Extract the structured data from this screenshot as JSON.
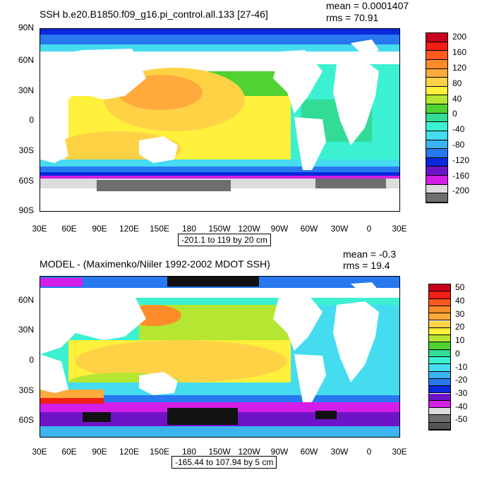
{
  "panels": [
    {
      "title": "SSH b.e20.B1850.f09_g16.pi_control.all.133 [27-46]",
      "mean": "mean = 0.0001407",
      "rms": "rms = 70.91",
      "range_note": "-201.1 to 119 by 20 cm",
      "lat_labels": [
        "90N",
        "60N",
        "30N",
        "0",
        "30S",
        "60S",
        "90S"
      ],
      "lon_labels": [
        "30E",
        "60E",
        "90E",
        "120E",
        "150E",
        "180",
        "150W",
        "120W",
        "90W",
        "60W",
        "30W",
        "0",
        "30E"
      ],
      "colorbar_labels": [
        "200",
        "160",
        "120",
        "80",
        "40",
        "0",
        "-40",
        "-80",
        "-120",
        "-160",
        "-200"
      ],
      "colorbar_colors": [
        "#c8001e",
        "#f01e14",
        "#ff5a1e",
        "#ff8c28",
        "#ffaa3c",
        "#ffd246",
        "#fff03c",
        "#b4e632",
        "#50d232",
        "#32dc96",
        "#3cf0d2",
        "#46dcf0",
        "#3cb4f0",
        "#2878f0",
        "#0a28dc",
        "#6e14c8",
        "#d21ee6",
        "#dcdcdc",
        "#6e6e6e"
      ]
    },
    {
      "title": "MODEL - (Maximenko/Niiler 1992-2002 MDOT SSH)",
      "mean": "mean = -0.3",
      "rms": "rms = 19.4",
      "range_note": "-165.44 to 107.94 by 5 cm",
      "lat_labels": [
        "60N",
        "30N",
        "0",
        "30S",
        "60S"
      ],
      "lon_labels": [
        "30E",
        "60E",
        "90E",
        "120E",
        "150E",
        "180",
        "150W",
        "120W",
        "90W",
        "60W",
        "30W",
        "0",
        "30E"
      ],
      "colorbar_labels": [
        "50",
        "40",
        "30",
        "20",
        "10",
        "0",
        "-10",
        "-20",
        "-30",
        "-40",
        "-50"
      ],
      "colorbar_colors": [
        "#c8001e",
        "#f01e14",
        "#ff5a1e",
        "#ff8c28",
        "#ffaa3c",
        "#ffd246",
        "#fff03c",
        "#b4e632",
        "#50d232",
        "#32dc96",
        "#3cf0d2",
        "#46dcf0",
        "#3cb4f0",
        "#2878f0",
        "#0a28dc",
        "#6e14c8",
        "#d21ee6",
        "#dcdcdc",
        "#6e6e6e",
        "#555555"
      ]
    }
  ]
}
